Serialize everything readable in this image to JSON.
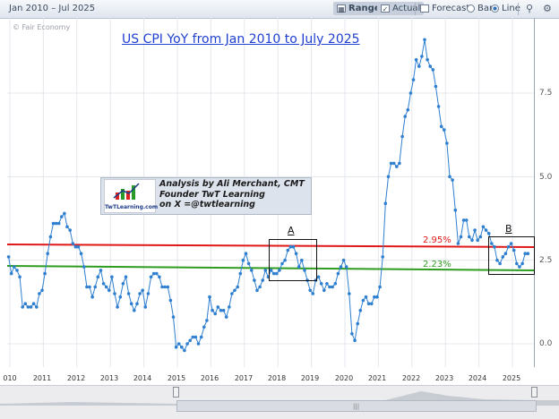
{
  "toolbar": {
    "date_range": "Jan 2010 – Jul 2025",
    "range_label": "Range",
    "actual_label": "Actual",
    "forecast_label": "Forecast",
    "bar_label": "Bar",
    "line_label": "Line",
    "icons": [
      "range-icon",
      "checkbox-icon",
      "forecast-icon",
      "radio-icon",
      "search-icon",
      "settings-icon"
    ]
  },
  "source": "© Fair Economy",
  "colors": {
    "series": "#2f7fd0",
    "red_line": "#e01818",
    "green_line": "#2e9c20",
    "title": "#1f3fd0"
  },
  "annotation": {
    "logo_text": "TwTLearning.com",
    "line1": "Analysis by Ali Merchant, CMT",
    "line2": "Founder TwT Learning",
    "line3": "on X =@twtlearning"
  },
  "zones": {
    "a": "A",
    "b": "B"
  },
  "chart_data": {
    "type": "line",
    "title": "US CPI YoY from Jan 2010 to July 2025",
    "xlabel": "",
    "ylabel": "",
    "ylim": [
      -0.2,
      9.3
    ],
    "y_ticks": [
      "0.0",
      "2.5",
      "5.0",
      "7.5"
    ],
    "x_ticks": [
      "010",
      "2011",
      "2012",
      "2013",
      "2014",
      "2015",
      "2016",
      "2017",
      "2018",
      "2019",
      "2020",
      "2021",
      "2022",
      "2023",
      "2024",
      "2025"
    ],
    "grid": true,
    "start": "2010-01",
    "end": "2025-07",
    "horizontal_lines": [
      {
        "label": "2.95%",
        "value": 2.95,
        "color": "#e01818"
      },
      {
        "label": "2.23%",
        "value": 2.23,
        "color": "#2e9c20"
      }
    ],
    "series": [
      {
        "name": "",
        "values": [
          2.6,
          2.1,
          2.3,
          2.2,
          2.0,
          1.1,
          1.2,
          1.1,
          1.1,
          1.2,
          1.1,
          1.5,
          1.6,
          2.1,
          2.7,
          3.2,
          3.6,
          3.6,
          3.6,
          3.8,
          3.9,
          3.5,
          3.4,
          3.0,
          2.9,
          2.9,
          2.7,
          2.3,
          1.7,
          1.7,
          1.4,
          1.7,
          2.0,
          2.2,
          1.8,
          1.7,
          1.6,
          2.0,
          1.5,
          1.1,
          1.4,
          1.8,
          2.0,
          1.5,
          1.2,
          1.0,
          1.2,
          1.5,
          1.6,
          1.1,
          1.5,
          2.0,
          2.1,
          2.1,
          2.0,
          1.7,
          1.7,
          1.7,
          1.3,
          0.8,
          -0.1,
          0.0,
          -0.1,
          -0.2,
          0.0,
          0.1,
          0.2,
          0.2,
          0.0,
          0.2,
          0.5,
          0.7,
          1.4,
          1.0,
          0.9,
          1.1,
          1.0,
          1.0,
          0.8,
          1.1,
          1.5,
          1.6,
          1.7,
          2.1,
          2.5,
          2.7,
          2.4,
          2.2,
          1.9,
          1.6,
          1.7,
          1.9,
          2.2,
          2.0,
          2.2,
          2.1,
          2.1,
          2.2,
          2.4,
          2.5,
          2.8,
          2.9,
          2.9,
          2.7,
          2.3,
          2.5,
          2.2,
          1.9,
          1.6,
          1.5,
          1.9,
          2.0,
          1.8,
          1.6,
          1.8,
          1.7,
          1.7,
          1.8,
          2.1,
          2.3,
          2.5,
          2.3,
          1.5,
          0.3,
          0.1,
          0.6,
          1.0,
          1.3,
          1.4,
          1.2,
          1.2,
          1.4,
          1.4,
          1.7,
          2.6,
          4.2,
          5.0,
          5.4,
          5.4,
          5.3,
          5.4,
          6.2,
          6.8,
          7.0,
          7.5,
          7.9,
          8.5,
          8.3,
          8.6,
          9.1,
          8.5,
          8.3,
          8.2,
          7.7,
          7.1,
          6.5,
          6.4,
          6.0,
          5.0,
          4.9,
          4.0,
          3.0,
          3.2,
          3.7,
          3.7,
          3.2,
          3.1,
          3.4,
          3.1,
          3.2,
          3.5,
          3.4,
          3.3,
          3.0,
          2.9,
          2.5,
          2.4,
          2.6,
          2.7,
          2.9,
          3.0,
          2.8,
          2.4,
          2.3,
          2.4,
          2.7,
          2.7
        ]
      }
    ]
  }
}
